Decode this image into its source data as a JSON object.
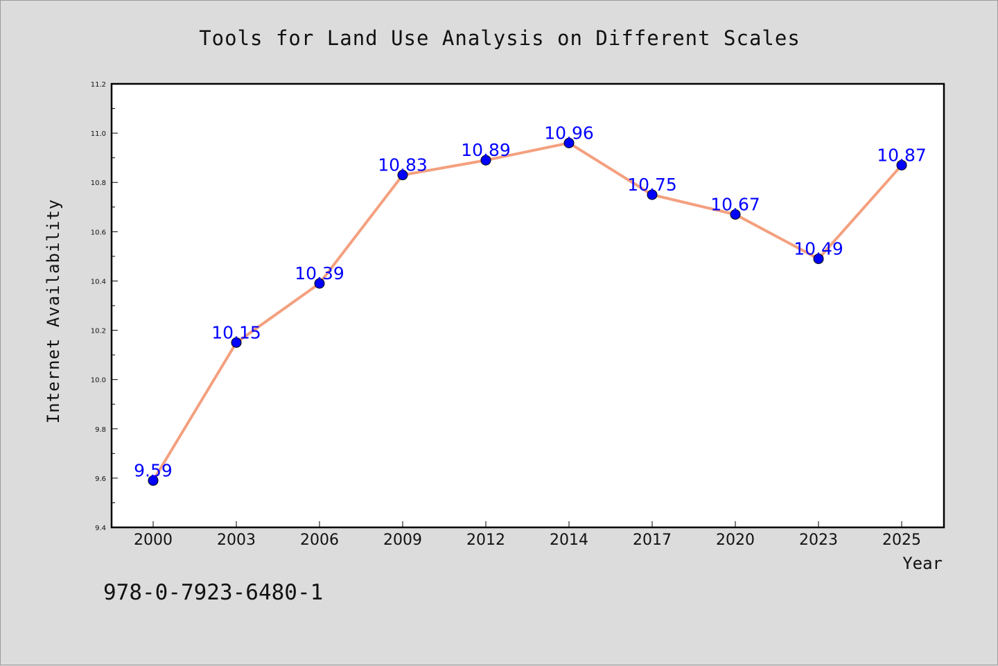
{
  "chart_data": {
    "type": "line",
    "title": "Tools for Land Use Analysis on Different Scales",
    "xlabel": "Year",
    "ylabel": "Internet Availability",
    "categories": [
      "2000",
      "2003",
      "2006",
      "2009",
      "2012",
      "2014",
      "2017",
      "2020",
      "2023",
      "2025"
    ],
    "values": [
      9.59,
      10.15,
      10.39,
      10.83,
      10.89,
      10.96,
      10.75,
      10.67,
      10.49,
      10.87
    ],
    "data_labels": [
      "9.59",
      "10.15",
      "10.39",
      "10.83",
      "10.89",
      "10.96",
      "10.75",
      "10.67",
      "10.49",
      "10.87"
    ],
    "ylim": [
      9.4,
      11.2
    ],
    "yticks": [
      "9.4",
      "9.6",
      "9.8",
      "10.0",
      "10.2",
      "10.4",
      "10.6",
      "10.8",
      "11.0",
      "11.2"
    ],
    "grid": false,
    "legend": "none",
    "colors": {
      "line": "#f4a07f",
      "marker": "#0000ff",
      "data_label": "#0000ff",
      "background": "#dcdcdc",
      "plot_area": "#ffffff"
    }
  },
  "annotation": "978-0-7923-6480-1"
}
